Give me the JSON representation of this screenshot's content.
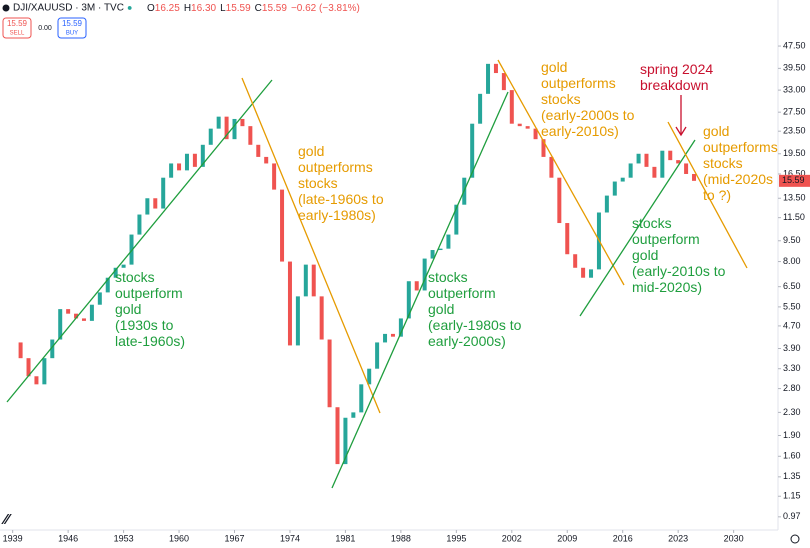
{
  "chart_data": {
    "type": "candlestick",
    "title": "DJI/XAUUSD · 3M · TVC",
    "header": {
      "ohlc": [
        "O",
        "16.25",
        "H",
        "16.30",
        "L",
        "15.59",
        "C",
        "15.59",
        "−0.62 (−3.81%)"
      ],
      "sell_price": "15.59",
      "sell": "SELL",
      "spread": "0.00",
      "buy_price": "15.59",
      "buy": "BUY"
    },
    "x": [
      1939,
      1940,
      1941,
      1942,
      1943,
      1944,
      1945,
      1946,
      1947,
      1948,
      1949,
      1950,
      1951,
      1952,
      1953,
      1954,
      1955,
      1956,
      1957,
      1958,
      1959,
      1960,
      1961,
      1962,
      1963,
      1964,
      1965,
      1966,
      1967,
      1968,
      1969,
      1970,
      1971,
      1972,
      1973,
      1974,
      1975,
      1976,
      1977,
      1978,
      1979,
      1980,
      1981,
      1982,
      1983,
      1984,
      1985,
      1986,
      1987,
      1988,
      1989,
      1990,
      1991,
      1992,
      1993,
      1994,
      1995,
      1996,
      1997,
      1998,
      1999,
      2000,
      2001,
      2002,
      2003,
      2004,
      2005,
      2006,
      2007,
      2008,
      2009,
      2010,
      2011,
      2012,
      2013,
      2014,
      2015,
      2016,
      2017,
      2018,
      2019,
      2020,
      2021,
      2022,
      2023,
      2024,
      2025
    ],
    "series": [
      {
        "name": "DJI/XAUUSD",
        "up_color": "#26a69a",
        "down_color": "#ef5350",
        "values": [
          4.1,
          3.6,
          3.1,
          2.9,
          3.6,
          4.2,
          5.4,
          5.2,
          5.0,
          4.9,
          5.6,
          6.2,
          7.0,
          7.6,
          7.8,
          10.0,
          11.8,
          13.5,
          12.4,
          16.0,
          18.0,
          17.0,
          19.5,
          17.5,
          21.0,
          24.0,
          26.5,
          22.0,
          26.0,
          24.5,
          21.0,
          19.0,
          18.0,
          14.5,
          8.0,
          4.0,
          6.0,
          7.8,
          6.0,
          4.2,
          2.4,
          1.5,
          2.2,
          2.3,
          2.9,
          3.3,
          4.1,
          4.4,
          4.3,
          5.0,
          6.8,
          6.3,
          8.2,
          8.8,
          8.9,
          10.0,
          12.8,
          16.0,
          25.0,
          32.0,
          41.0,
          38.0,
          33.0,
          25.0,
          24.5,
          24.0,
          22.0,
          19.0,
          16.0,
          11.0,
          8.5,
          7.6,
          7.0,
          7.5,
          12.0,
          13.8,
          15.5,
          16.0,
          18.0,
          19.5,
          17.5,
          16.0,
          20.0,
          18.5,
          18.0,
          16.5,
          15.59
        ]
      }
    ],
    "log_scale": true,
    "xlim": [
      1937.4,
      2035.6
    ],
    "xticks": [
      1939,
      1946,
      1953,
      1960,
      1967,
      1974,
      1981,
      1988,
      1995,
      2002,
      2009,
      2016,
      2023,
      2030
    ],
    "ylim": [
      0.87,
      69.5
    ],
    "yticks": [
      {
        "value": 47.5,
        "label": "47.50"
      },
      {
        "value": 39.5,
        "label": "39.50"
      },
      {
        "value": 33,
        "label": "33.00"
      },
      {
        "value": 27.5,
        "label": "27.50"
      },
      {
        "value": 23.5,
        "label": "23.50"
      },
      {
        "value": 19.5,
        "label": "19.50"
      },
      {
        "value": 16.5,
        "label": "16.50"
      },
      {
        "value": 13.5,
        "label": "13.50"
      },
      {
        "value": 11.5,
        "label": "11.50"
      },
      {
        "value": 9.5,
        "label": "9.50"
      },
      {
        "value": 8,
        "label": "8.00"
      },
      {
        "value": 6.5,
        "label": "6.50"
      },
      {
        "value": 5.5,
        "label": "5.50"
      },
      {
        "value": 4.7,
        "label": "4.70"
      },
      {
        "value": 3.9,
        "label": "3.90"
      },
      {
        "value": 3.3,
        "label": "3.30"
      },
      {
        "value": 2.8,
        "label": "2.80"
      },
      {
        "value": 2.3,
        "label": "2.30"
      },
      {
        "value": 1.9,
        "label": "1.90"
      },
      {
        "value": 1.6,
        "label": "1.60"
      },
      {
        "value": 1.35,
        "label": "1.35"
      },
      {
        "value": 1.15,
        "label": "1.15"
      },
      {
        "value": 0.97,
        "label": "0.97"
      }
    ],
    "annotations": [
      {
        "color": "#1f9e3e",
        "lines": [
          "stocks",
          "outperform",
          "gold",
          "(1930s to",
          "late-1960s)"
        ]
      },
      {
        "color": "#e69b00",
        "lines": [
          "gold",
          "outperforms",
          "stocks",
          "(late-1960s to",
          "early-1980s)"
        ]
      },
      {
        "color": "#1f9e3e",
        "lines": [
          "stocks",
          "outperform",
          "gold",
          "(early-1980s to",
          "early-2000s)"
        ]
      },
      {
        "color": "#e69b00",
        "lines": [
          "gold",
          "outperforms",
          "stocks",
          "(early-2000s to",
          "early-2010s)"
        ]
      },
      {
        "color": "#c8102e",
        "lines": [
          "spring 2024",
          "breakdown"
        ]
      },
      {
        "color": "#e69b00",
        "lines": [
          "gold",
          "outperforms",
          "stocks",
          "(mid-2020s",
          "to ?)"
        ]
      },
      {
        "color": "#1f9e3e",
        "lines": [
          "stocks",
          "outperform",
          "gold",
          "(early-2010s to",
          "mid-2020s)"
        ]
      }
    ]
  }
}
